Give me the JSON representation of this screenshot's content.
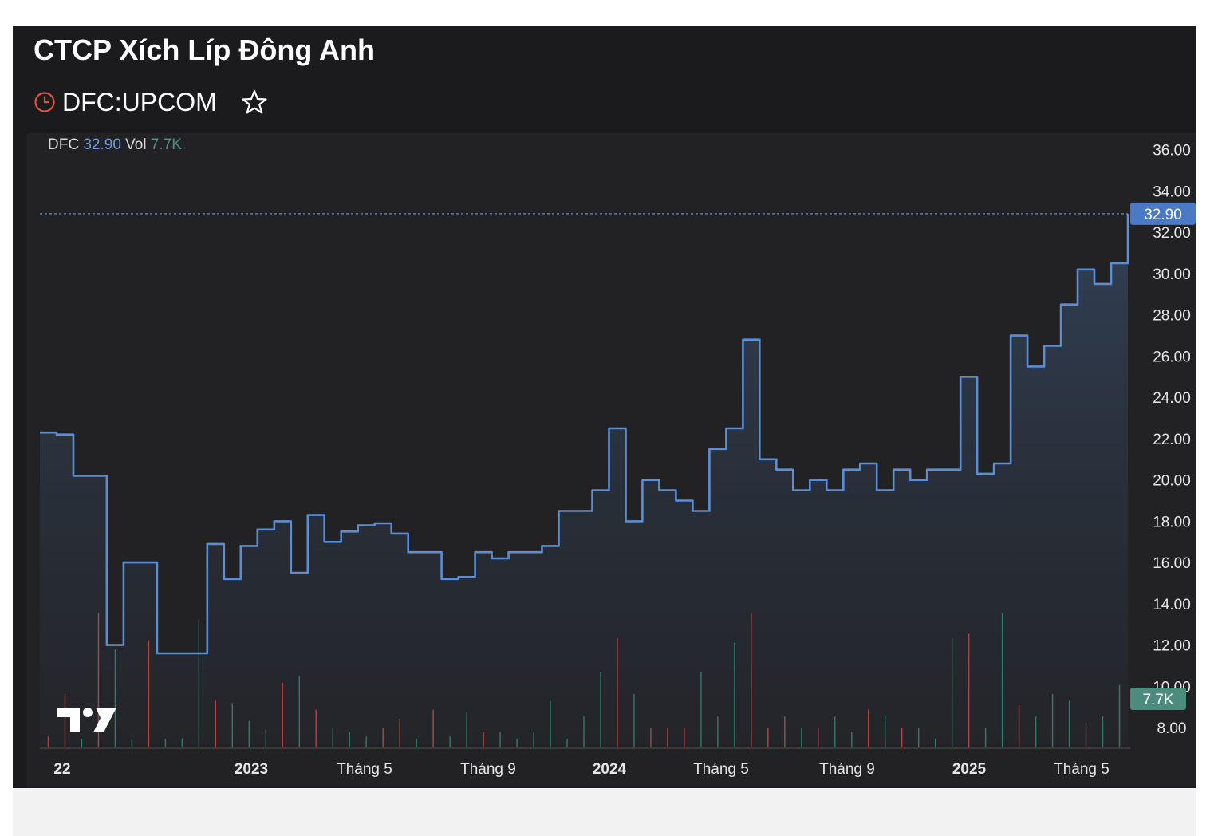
{
  "header": {
    "company_name": "CTCP Xích Líp Đông Anh",
    "ticker": "DFC:UPCOM",
    "status_icon": "clock-icon",
    "watchlist_icon": "star-icon"
  },
  "legend": {
    "symbol": "DFC",
    "price": "32.90",
    "vol_label": "Vol",
    "vol_value": "7.7K"
  },
  "colors": {
    "line": "#5b8ed4",
    "price_badge": "#4a79c6",
    "vol_badge": "#4c8c7e",
    "vol_up": "#2e7d6e",
    "vol_down": "#b04545"
  },
  "chart_data": {
    "type": "area",
    "title": "",
    "xlabel": "",
    "ylabel": "",
    "ylim": [
      7,
      36.8
    ],
    "yticks": [
      "36.00",
      "34.00",
      "32.00",
      "30.00",
      "28.00",
      "26.00",
      "24.00",
      "22.00",
      "20.00",
      "18.00",
      "16.00",
      "14.00",
      "12.00",
      "10.00",
      "8.00"
    ],
    "xticks": [
      "22",
      "2023",
      "Tháng 5",
      "Tháng 9",
      "2024",
      "Tháng 5",
      "Tháng 9",
      "2025",
      "Tháng 5"
    ],
    "last_price": "32.90",
    "last_volume": "7.7K",
    "series": [
      {
        "name": "DFC",
        "x": [
          "2022-12",
          "2022-12",
          "2023-01",
          "2023-01",
          "2023-02",
          "2023-02",
          "2023-02",
          "2023-03",
          "2023-03",
          "2023-04",
          "2023-04",
          "2023-04",
          "2023-05",
          "2023-05",
          "2023-05",
          "2023-06",
          "2023-06",
          "2023-06",
          "2023-07",
          "2023-07",
          "2023-08",
          "2023-09",
          "2023-09",
          "2023-10",
          "2023-10",
          "2023-11",
          "2023-11",
          "2023-12",
          "2023-12",
          "2024-01",
          "2024-01",
          "2024-02",
          "2024-02",
          "2024-03",
          "2024-03",
          "2024-04",
          "2024-04",
          "2024-05",
          "2024-05",
          "2024-06",
          "2024-06",
          "2024-07",
          "2024-07",
          "2024-08",
          "2024-08",
          "2024-08",
          "2024-09",
          "2024-09",
          "2024-10",
          "2024-10",
          "2024-11",
          "2024-11",
          "2024-12",
          "2024-12",
          "2025-01",
          "2025-02",
          "2025-02",
          "2025-03",
          "2025-03",
          "2025-04",
          "2025-04",
          "2025-05",
          "2025-05",
          "2025-06",
          "2025-06",
          "2025-06"
        ],
        "values": [
          22.3,
          22.2,
          20.2,
          20.2,
          12.0,
          16.0,
          16.0,
          11.6,
          11.6,
          11.6,
          16.9,
          15.2,
          16.8,
          17.6,
          18.0,
          15.5,
          18.3,
          17.0,
          17.5,
          17.8,
          17.9,
          17.4,
          16.5,
          16.5,
          15.2,
          15.3,
          16.5,
          16.2,
          16.5,
          16.5,
          16.8,
          18.5,
          18.5,
          19.5,
          22.5,
          18.0,
          20.0,
          19.5,
          19.0,
          18.5,
          21.5,
          22.5,
          26.8,
          21.0,
          20.5,
          19.5,
          20.0,
          19.5,
          20.5,
          20.8,
          19.5,
          20.5,
          20.0,
          20.5,
          20.5,
          25.0,
          20.3,
          20.8,
          27.0,
          25.5,
          26.5,
          28.5,
          30.2,
          29.5,
          30.5,
          32.9
        ]
      }
    ]
  }
}
